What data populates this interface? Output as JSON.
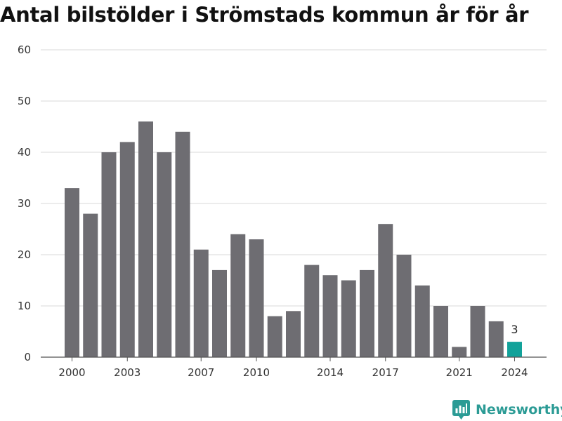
{
  "chart_data": {
    "type": "bar",
    "title": "Antal bilstölder i Strömstads kommun år för år",
    "xlabel": "",
    "ylabel": "",
    "categories": [
      "2000",
      "2001",
      "2002",
      "2003",
      "2004",
      "2005",
      "2006",
      "2007",
      "2008",
      "2009",
      "2010",
      "2011",
      "2012",
      "2013",
      "2014",
      "2015",
      "2016",
      "2017",
      "2018",
      "2019",
      "2020",
      "2021",
      "2022",
      "2023",
      "2024"
    ],
    "values": [
      33,
      28,
      40,
      42,
      46,
      40,
      44,
      21,
      17,
      24,
      23,
      8,
      9,
      18,
      16,
      15,
      17,
      26,
      20,
      14,
      10,
      2,
      10,
      7,
      3
    ],
    "x_tick_labels": [
      "2000",
      "2003",
      "2007",
      "2010",
      "2014",
      "2017",
      "2021",
      "2024"
    ],
    "y_ticks": [
      0,
      10,
      20,
      30,
      40,
      50,
      60
    ],
    "ylim": [
      0,
      60
    ],
    "grid": true,
    "legend": "none",
    "highlight": {
      "category": "2024",
      "label": "3"
    },
    "colors": {
      "bar": "#6e6d72",
      "highlight": "#12a29a",
      "grid": "#d9d9d9",
      "baseline": "#555555"
    }
  },
  "branding": {
    "name": "Newsworthy",
    "icon": "bar-chart-pin-icon",
    "color": "#2b9b95"
  }
}
